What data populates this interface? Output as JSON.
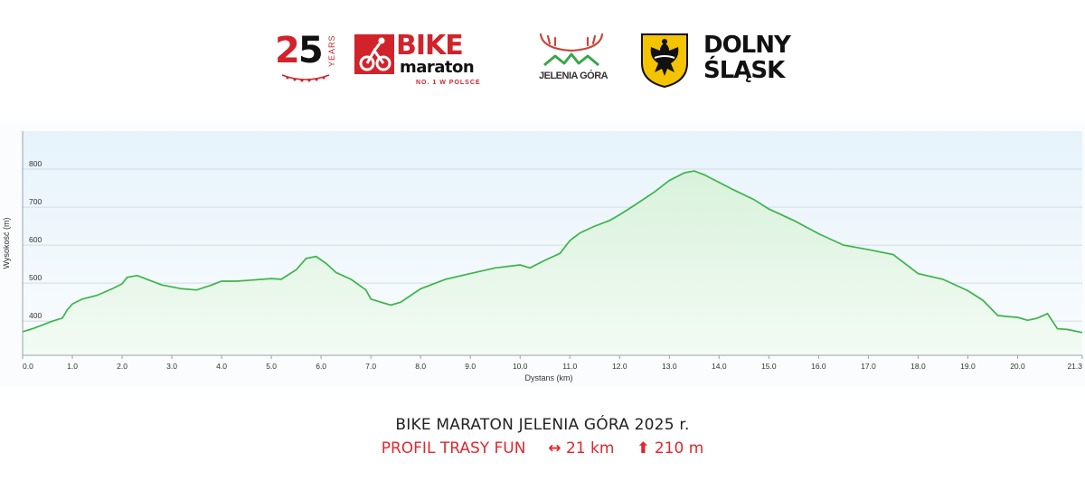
{
  "logos": {
    "anniversary": {
      "number_a": "2",
      "number_b": "5",
      "side_text": "YEARS"
    },
    "bike_maraton": {
      "line1": "BIKE",
      "line2": "maraton",
      "tagline": "NO. 1 W POLSCE"
    },
    "jelenia_gora": {
      "name": "JELENIA GÓRA"
    },
    "dolny_slask": {
      "line1": "DOLNY",
      "line2": "ŚLĄSK"
    }
  },
  "caption": {
    "title": "BIKE MARATON JELENIA GÓRA 2025 r.",
    "route_label": "PROFIL TRASY FUN",
    "distance": "21 km",
    "elevation_gain": "210 m",
    "distance_icon": "left-right-arrow-icon",
    "elevation_icon": "up-arrow-icon"
  },
  "chart_data": {
    "type": "area",
    "xlabel": "Dystans  (km)",
    "ylabel": "Wysokość (m)",
    "xlim": [
      0,
      21.3
    ],
    "ylim": [
      310,
      900
    ],
    "x_ticks": [
      "0.0",
      "1.0",
      "2.0",
      "3.0",
      "4.0",
      "5.0",
      "6.0",
      "7.0",
      "8.0",
      "9.0",
      "10.0",
      "11.0",
      "12.0",
      "13.0",
      "14.0",
      "15.0",
      "16.0",
      "17.0",
      "18.0",
      "19.0",
      "20.0",
      "21.3"
    ],
    "y_ticks": [
      "400",
      "500",
      "600",
      "700",
      "800"
    ],
    "grid": "horizontal",
    "colors": {
      "line": "#3cb44a",
      "fill_top": "#d9f2dc",
      "fill_bottom": "#f3fbf4",
      "plot_bg_top": "#e7f3fb",
      "plot_bg_bottom": "#f9fcfe"
    },
    "series": [
      {
        "x": [
          0.0,
          0.2,
          0.4,
          0.6,
          0.8,
          0.9,
          1.0,
          1.2,
          1.5,
          1.8,
          2.0,
          2.1,
          2.3,
          2.5,
          2.8,
          3.0,
          3.2,
          3.5,
          3.8,
          4.0,
          4.3,
          4.6,
          5.0,
          5.2,
          5.5,
          5.7,
          5.9,
          6.1,
          6.3,
          6.6,
          6.9,
          7.0,
          7.2,
          7.4,
          7.6,
          8.0,
          8.5,
          9.0,
          9.5,
          10.0,
          10.2,
          10.5,
          10.8,
          11.0,
          11.2,
          11.5,
          11.8,
          12.0,
          12.3,
          12.7,
          13.0,
          13.3,
          13.5,
          13.7,
          14.0,
          14.3,
          14.7,
          15.0,
          15.5,
          16.0,
          16.5,
          17.0,
          17.5,
          18.0,
          18.5,
          19.0,
          19.3,
          19.6,
          19.8,
          20.0,
          20.2,
          20.4,
          20.6,
          20.8,
          21.0,
          21.3
        ],
        "y": [
          372,
          380,
          390,
          400,
          408,
          430,
          445,
          458,
          468,
          485,
          498,
          515,
          520,
          510,
          495,
          490,
          485,
          482,
          495,
          505,
          505,
          508,
          512,
          510,
          535,
          565,
          570,
          552,
          528,
          510,
          482,
          458,
          450,
          442,
          450,
          485,
          510,
          525,
          540,
          548,
          540,
          560,
          578,
          612,
          632,
          650,
          665,
          680,
          705,
          740,
          770,
          790,
          795,
          785,
          765,
          745,
          720,
          695,
          665,
          630,
          600,
          588,
          575,
          525,
          510,
          480,
          455,
          415,
          412,
          410,
          402,
          408,
          420,
          380,
          378,
          370
        ]
      }
    ]
  }
}
